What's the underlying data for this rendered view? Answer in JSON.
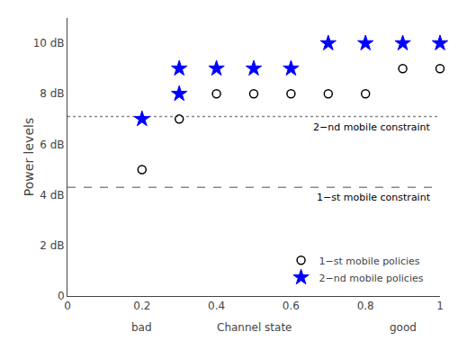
{
  "chart_data": {
    "type": "scatter",
    "series": [
      {
        "name": "1−st mobile policies",
        "color": "black",
        "marker": "circle-open",
        "x": [
          0.2,
          0.3,
          0.4,
          0.5,
          0.6,
          0.7,
          0.8,
          0.9,
          1.0
        ],
        "values": [
          5,
          7,
          8,
          8,
          8,
          8,
          8,
          9,
          9
        ]
      },
      {
        "name": "2−nd mobile policies",
        "color": "blue",
        "marker": "star",
        "x": [
          0.2,
          0.3,
          0.3,
          0.4,
          0.5,
          0.6,
          0.7,
          0.8,
          0.9,
          1.0
        ],
        "values": [
          7,
          8,
          9,
          9,
          9,
          9,
          10,
          10,
          10,
          10
        ]
      }
    ],
    "annotations": [
      {
        "text": "1−st mobile constraint",
        "y": 4.3,
        "color": "#888888",
        "line_style": "dash"
      },
      {
        "text": "2−nd mobile constraint",
        "y": 7.1,
        "color": "#888888",
        "line_style": "dot"
      }
    ],
    "ylabel": "Power levels",
    "xlim": [
      0,
      1.0
    ],
    "ylim": [
      0,
      11
    ],
    "xticks": [
      0,
      0.2,
      0.4,
      0.6,
      0.8,
      1
    ],
    "yticks": [
      0,
      {
        "value": 2,
        "label": "2 dB"
      },
      {
        "value": 4,
        "label": "4 dB"
      },
      {
        "value": 6,
        "label": "6 dB"
      },
      {
        "value": 8,
        "label": "8 dB"
      },
      {
        "value": 10,
        "label": "10 dB"
      }
    ],
    "x2ticks": [
      {
        "value": 0.2,
        "label": "bad"
      },
      {
        "value": 0.5,
        "label": "Channel state"
      },
      {
        "value": 0.9,
        "label": "good"
      }
    ],
    "legend": "lower right",
    "grid": false
  }
}
